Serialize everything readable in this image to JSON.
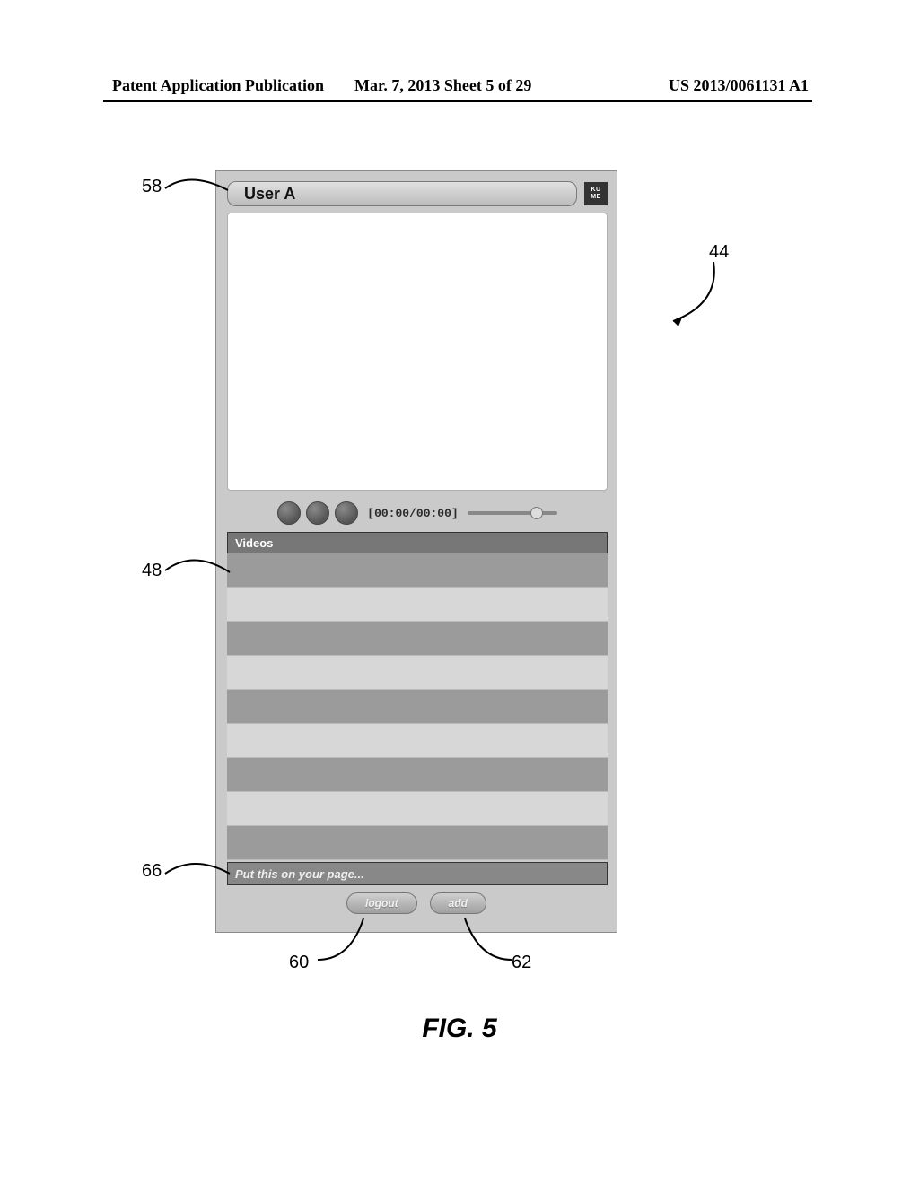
{
  "header": {
    "left": "Patent Application Publication",
    "mid": "Mar. 7, 2013  Sheet 5 of 29",
    "right": "US 2013/0061131 A1"
  },
  "widget": {
    "user_name": "User A",
    "logo_top": "KU",
    "logo_bottom": "ME",
    "timecode": "[00:00/00:00]",
    "videos_header": "Videos",
    "row_colors": [
      "#9b9b9b",
      "#d7d7d7",
      "#9b9b9b",
      "#d7d7d7",
      "#9b9b9b",
      "#d7d7d7",
      "#9b9b9b",
      "#d7d7d7",
      "#9b9b9b"
    ],
    "embed_text": "Put this on your page...",
    "logout_label": "logout",
    "add_label": "add",
    "seek_thumb_pct": 70
  },
  "refs": {
    "r58": "58",
    "r44": "44",
    "r48": "48",
    "r66": "66",
    "r60": "60",
    "r62": "62"
  },
  "caption": "FIG. 5"
}
